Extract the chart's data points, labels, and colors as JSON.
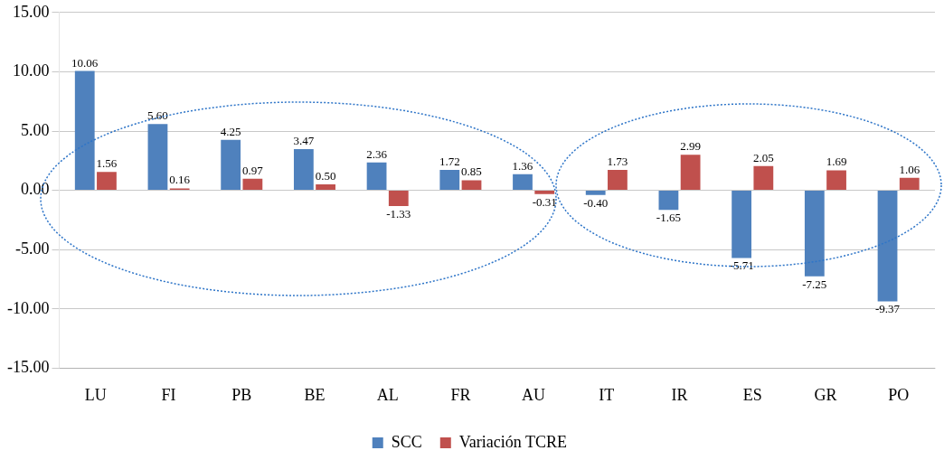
{
  "chart_data": {
    "type": "bar",
    "categories": [
      "LU",
      "FI",
      "PB",
      "BE",
      "AL",
      "FR",
      "AU",
      "IT",
      "IR",
      "ES",
      "GR",
      "PO"
    ],
    "series": [
      {
        "name": "SCC",
        "color": "#4f81bd",
        "values": [
          10.06,
          5.6,
          4.25,
          3.47,
          2.36,
          1.72,
          1.36,
          -0.4,
          -1.65,
          -5.71,
          -7.25,
          -9.37
        ],
        "value_labels": [
          "10.06",
          "5.60",
          "4.25",
          "3.47",
          "2.36",
          "1.72",
          "1.36",
          "-0.40",
          "-1.65",
          "-5.71",
          "-7.25",
          "-9.37"
        ]
      },
      {
        "name": "Variación TCRE",
        "color": "#c0504d",
        "values": [
          1.56,
          0.16,
          0.97,
          0.5,
          -1.33,
          0.85,
          -0.31,
          1.73,
          2.99,
          2.05,
          1.69,
          1.06
        ],
        "value_labels": [
          "1.56",
          "0.16",
          "0.97",
          "0.50",
          "-1.33",
          "0.85",
          "-0.31",
          "1.73",
          "2.99",
          "2.05",
          "1.69",
          "1.06"
        ]
      }
    ],
    "ylim": [
      -15,
      15
    ],
    "yticks": [
      {
        "value": -15,
        "label": "-15.00"
      },
      {
        "value": -10,
        "label": "-10.00"
      },
      {
        "value": -5,
        "label": "-5.00"
      },
      {
        "value": 0,
        "label": "0.00"
      },
      {
        "value": 5,
        "label": "5.00"
      },
      {
        "value": 10,
        "label": "10.00"
      },
      {
        "value": 15,
        "label": "15.00"
      }
    ],
    "grid": "y",
    "legend": "bottom"
  }
}
